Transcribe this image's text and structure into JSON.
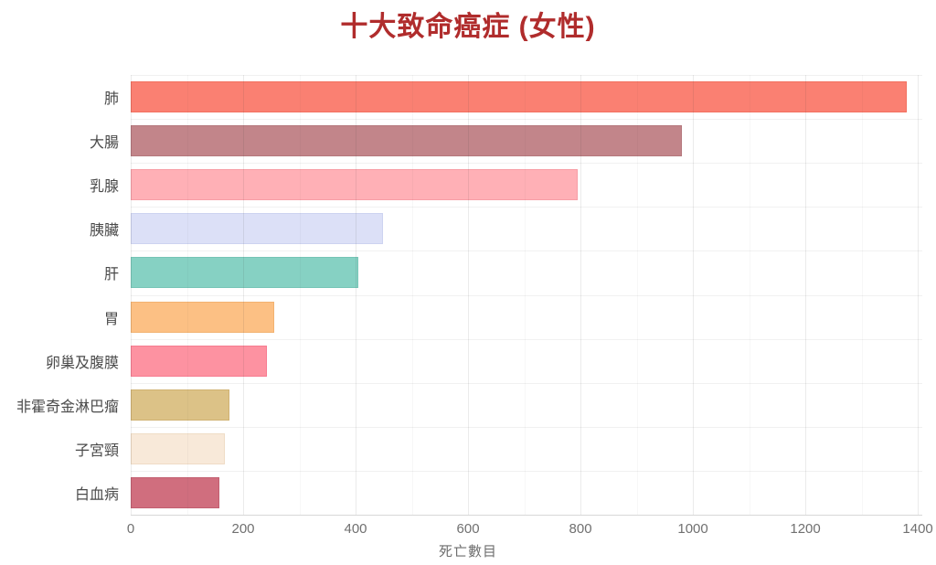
{
  "title": "十大致命癌症 (女性)",
  "colors": {
    "title": "#b02c2c",
    "category_label_text": "#4a4a4a",
    "tick_text": "#707070",
    "axis_line": "#d8d8d8",
    "background": "#ffffff"
  },
  "chart_data": {
    "type": "bar",
    "orientation": "horizontal",
    "title": "十大致命癌症 (女性)",
    "xlabel": "死亡數目",
    "ylabel": "",
    "categories": [
      "肺",
      "大腸",
      "乳腺",
      "胰臟",
      "肝",
      "胃",
      "卵巢及腹膜",
      "非霍奇金淋巴瘤",
      "子宮頸",
      "白血病"
    ],
    "values": [
      1380,
      980,
      795,
      448,
      405,
      255,
      242,
      175,
      168,
      158
    ],
    "bar_fill_colors": [
      "#fa8072",
      "#c2858a",
      "#ffb0b6",
      "#dce0f7",
      "#86d1c3",
      "#fcc084",
      "#fd92a1",
      "#dcc287",
      "#f8e9d9",
      "#d06e7e"
    ],
    "bar_border_colors": [
      "#f2705f",
      "#b4777c",
      "#f79ea6",
      "#cdd3f0",
      "#76c5b6",
      "#f2b271",
      "#f77b90",
      "#d0b272",
      "#efdcc6",
      "#c25f70"
    ],
    "xlim": [
      0,
      1408
    ],
    "x_ticks": [
      0,
      200,
      400,
      600,
      800,
      1000,
      1200,
      1400
    ],
    "minor_grid_interval": 100,
    "grid": true,
    "legend": false
  }
}
